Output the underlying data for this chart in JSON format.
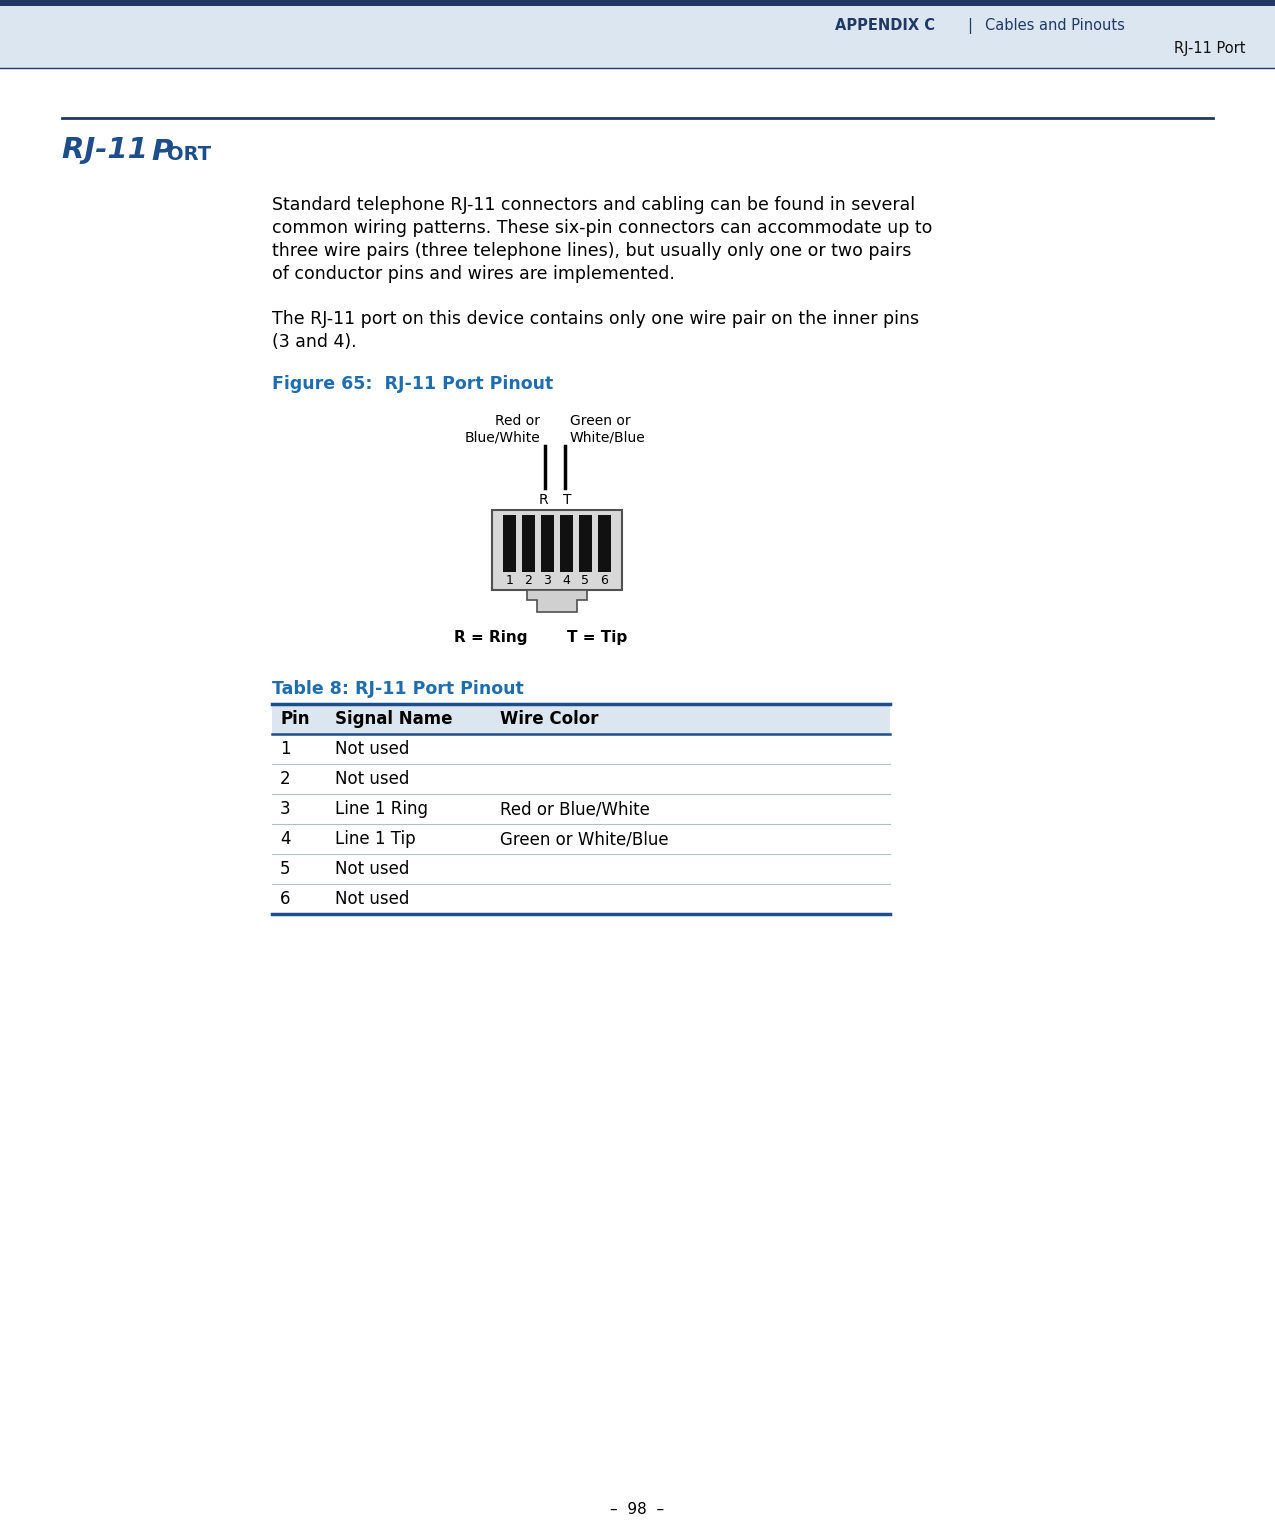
{
  "header_bg": "#dce6f0",
  "header_bar_color": "#1f3864",
  "header_text_left": "APPENDIX C",
  "header_text_separator": "|",
  "header_text_right": "Cables and Pinouts",
  "header_subtext": "RJ-11 Port",
  "header_text_color": "#1f3864",
  "page_bg": "#ffffff",
  "divider_color": "#1f3864",
  "section_title_color": "#1e4d8c",
  "body_text_color": "#000000",
  "body_para1_lines": [
    "Standard telephone RJ-11 connectors and cabling can be found in several",
    "common wiring patterns. These six-pin connectors can accommodate up to",
    "three wire pairs (three telephone lines), but usually only one or two pairs",
    "of conductor pins and wires are implemented."
  ],
  "body_para2_lines": [
    "The RJ-11 port on this device contains only one wire pair on the inner pins",
    "(3 and 4)."
  ],
  "figure_caption": "Figure 65:  RJ-11 Port Pinout",
  "figure_caption_color": "#1e6db0",
  "table_title": "Table 8: RJ-11 Port Pinout",
  "table_title_color": "#1e6db0",
  "table_header": [
    "Pin",
    "Signal Name",
    "Wire Color"
  ],
  "table_rows": [
    [
      "1",
      "Not used",
      ""
    ],
    [
      "2",
      "Not used",
      ""
    ],
    [
      "3",
      "Line 1 Ring",
      "Red or Blue/White"
    ],
    [
      "4",
      "Line 1 Tip",
      "Green or White/Blue"
    ],
    [
      "5",
      "Not used",
      ""
    ],
    [
      "6",
      "Not used",
      ""
    ]
  ],
  "table_line_color": "#1e4d8c",
  "wire_label_left": "Red or\nBlue/White",
  "wire_label_right": "Green or\nWhite/Blue",
  "legend_r": "R = Ring",
  "legend_t": "T = Tip",
  "page_number": "–  98  –",
  "connector_bg": "#d8d8d8",
  "connector_border": "#505050",
  "pin_color": "#111111",
  "pin_numbers": [
    "1",
    "2",
    "3",
    "4",
    "5",
    "6"
  ]
}
